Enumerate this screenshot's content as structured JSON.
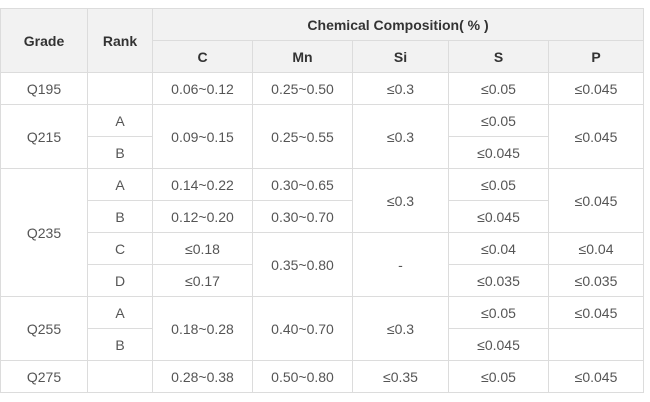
{
  "table": {
    "headers": {
      "grade": "Grade",
      "rank": "Rank",
      "group": "Chemical Composition( % )",
      "columns": [
        "C",
        "Mn",
        "Si",
        "S",
        "P"
      ]
    },
    "rows": [
      [
        "Q195",
        "0.06~0.12",
        "0.25~0.50",
        "≤0.3",
        "≤0.05",
        "≤0.045"
      ],
      [
        "Q215",
        "A",
        "0.09~0.15",
        "0.25~0.55",
        "≤0.3",
        "≤0.05",
        "≤0.045"
      ],
      [
        "B",
        "≤0.045"
      ],
      [
        "Q235",
        "A",
        "0.14~0.22",
        "0.30~0.65",
        "≤0.3",
        "≤0.05",
        "≤0.045"
      ],
      [
        "B",
        "0.12~0.20",
        "0.30~0.70",
        "≤0.045"
      ],
      [
        "C",
        "≤0.18",
        "0.35~0.80",
        "-",
        "≤0.04",
        "≤0.04"
      ],
      [
        "D",
        "≤0.17",
        "≤0.035",
        "≤0.035"
      ],
      [
        "Q255",
        "A",
        "0.18~0.28",
        "0.40~0.70",
        "≤0.3",
        "≤0.05",
        "≤0.045"
      ],
      [
        "B",
        "≤0.045"
      ],
      [
        "Q275",
        "0.28~0.38",
        "0.50~0.80",
        "≤0.35",
        "≤0.05",
        "≤0.045"
      ]
    ]
  }
}
